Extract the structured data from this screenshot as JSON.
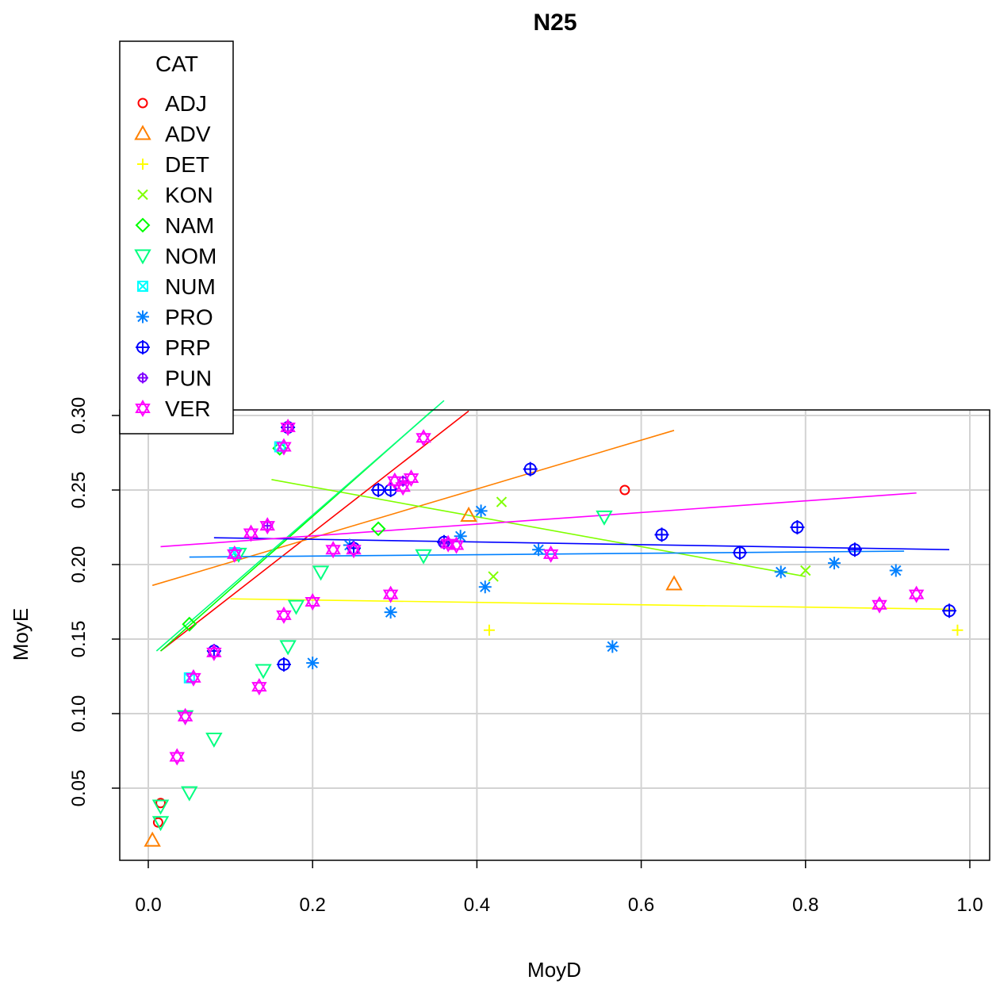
{
  "chart_data": {
    "type": "scatter",
    "title": "N25",
    "xlabel": "MoyD",
    "ylabel": "MoyE",
    "xlim": [
      0.0,
      1.0
    ],
    "ylim": [
      0.0,
      0.3
    ],
    "x_ticks": [
      "0.0",
      "0.2",
      "0.4",
      "0.6",
      "0.8",
      "1.0"
    ],
    "y_ticks": [
      "0.05",
      "0.10",
      "0.15",
      "0.20",
      "0.25",
      "0.30"
    ],
    "grid": true,
    "legend_position": "top-left",
    "legend_title": "CAT",
    "series": [
      {
        "name": "ADJ",
        "color": "#FF0000",
        "symbol": "circle",
        "points": [
          [
            0.012,
            0.027
          ],
          [
            0.58,
            0.25
          ],
          [
            0.015,
            0.04
          ]
        ],
        "fit": [
          [
            0.015,
            0.142
          ],
          [
            0.39,
            0.303
          ]
        ]
      },
      {
        "name": "ADV",
        "color": "#FF8000",
        "symbol": "triangle-up",
        "points": [
          [
            0.005,
            0.015
          ],
          [
            0.39,
            0.233
          ],
          [
            0.64,
            0.187
          ]
        ],
        "fit": [
          [
            0.005,
            0.186
          ],
          [
            0.64,
            0.29
          ]
        ]
      },
      {
        "name": "DET",
        "color": "#FFFF00",
        "symbol": "plus",
        "points": [
          [
            0.415,
            0.156
          ],
          [
            0.985,
            0.156
          ]
        ],
        "fit": [
          [
            0.1,
            0.177
          ],
          [
            0.98,
            0.17
          ]
        ]
      },
      {
        "name": "KON",
        "color": "#80FF00",
        "symbol": "cross",
        "points": [
          [
            0.43,
            0.242
          ],
          [
            0.42,
            0.192
          ],
          [
            0.8,
            0.196
          ]
        ],
        "fit": [
          [
            0.15,
            0.257
          ],
          [
            0.8,
            0.192
          ]
        ]
      },
      {
        "name": "NAM",
        "color": "#00FF00",
        "symbol": "diamond",
        "points": [
          [
            0.28,
            0.224
          ],
          [
            0.05,
            0.16
          ],
          [
            0.16,
            0.278
          ]
        ],
        "fit": [
          [
            0.015,
            0.142
          ],
          [
            0.345,
            0.303
          ]
        ]
      },
      {
        "name": "NOM",
        "color": "#00FF80",
        "symbol": "triangle-down",
        "points": [
          [
            0.015,
            0.038
          ],
          [
            0.015,
            0.027
          ],
          [
            0.05,
            0.047
          ],
          [
            0.08,
            0.083
          ],
          [
            0.14,
            0.129
          ],
          [
            0.17,
            0.145
          ],
          [
            0.18,
            0.172
          ],
          [
            0.21,
            0.195
          ],
          [
            0.335,
            0.206
          ],
          [
            0.555,
            0.232
          ],
          [
            0.045,
            0.098
          ],
          [
            0.11,
            0.207
          ]
        ],
        "fit": [
          [
            0.01,
            0.142
          ],
          [
            0.36,
            0.31
          ]
        ]
      },
      {
        "name": "NUM",
        "color": "#00FFFF",
        "symbol": "box-x",
        "points": [
          [
            0.105,
            0.208
          ],
          [
            0.05,
            0.124
          ],
          [
            0.16,
            0.279
          ]
        ]
      },
      {
        "name": "PRO",
        "color": "#0080FF",
        "symbol": "star",
        "points": [
          [
            0.2,
            0.134
          ],
          [
            0.295,
            0.168
          ],
          [
            0.41,
            0.185
          ],
          [
            0.405,
            0.236
          ],
          [
            0.38,
            0.219
          ],
          [
            0.475,
            0.21
          ],
          [
            0.565,
            0.145
          ],
          [
            0.77,
            0.195
          ],
          [
            0.835,
            0.201
          ],
          [
            0.91,
            0.196
          ],
          [
            0.245,
            0.213
          ]
        ],
        "fit": [
          [
            0.05,
            0.205
          ],
          [
            0.92,
            0.209
          ]
        ]
      },
      {
        "name": "PRP",
        "color": "#0000FF",
        "symbol": "circle-plus",
        "points": [
          [
            0.08,
            0.142
          ],
          [
            0.165,
            0.133
          ],
          [
            0.25,
            0.211
          ],
          [
            0.28,
            0.25
          ],
          [
            0.295,
            0.25
          ],
          [
            0.465,
            0.264
          ],
          [
            0.625,
            0.22
          ],
          [
            0.72,
            0.208
          ],
          [
            0.79,
            0.225
          ],
          [
            0.86,
            0.21
          ],
          [
            0.975,
            0.169
          ],
          [
            0.17,
            0.292
          ],
          [
            0.36,
            0.215
          ]
        ],
        "fit": [
          [
            0.08,
            0.218
          ],
          [
            0.975,
            0.21
          ]
        ]
      },
      {
        "name": "PUN",
        "color": "#8000FF",
        "symbol": "small-circle-plus",
        "points": [
          [
            0.145,
            0.226
          ],
          [
            0.36,
            0.214
          ],
          [
            0.31,
            0.256
          ],
          [
            0.17,
            0.292
          ]
        ]
      },
      {
        "name": "VER",
        "color": "#FF00FF",
        "symbol": "star-of-david",
        "points": [
          [
            0.035,
            0.071
          ],
          [
            0.045,
            0.098
          ],
          [
            0.055,
            0.124
          ],
          [
            0.08,
            0.141
          ],
          [
            0.105,
            0.207
          ],
          [
            0.125,
            0.221
          ],
          [
            0.135,
            0.118
          ],
          [
            0.145,
            0.226
          ],
          [
            0.165,
            0.166
          ],
          [
            0.165,
            0.279
          ],
          [
            0.17,
            0.292
          ],
          [
            0.2,
            0.175
          ],
          [
            0.225,
            0.21
          ],
          [
            0.25,
            0.21
          ],
          [
            0.295,
            0.18
          ],
          [
            0.3,
            0.256
          ],
          [
            0.31,
            0.252
          ],
          [
            0.32,
            0.258
          ],
          [
            0.335,
            0.285
          ],
          [
            0.365,
            0.214
          ],
          [
            0.375,
            0.213
          ],
          [
            0.49,
            0.207
          ],
          [
            0.89,
            0.173
          ],
          [
            0.935,
            0.18
          ]
        ],
        "fit": [
          [
            0.015,
            0.212
          ],
          [
            0.935,
            0.248
          ]
        ]
      }
    ]
  }
}
